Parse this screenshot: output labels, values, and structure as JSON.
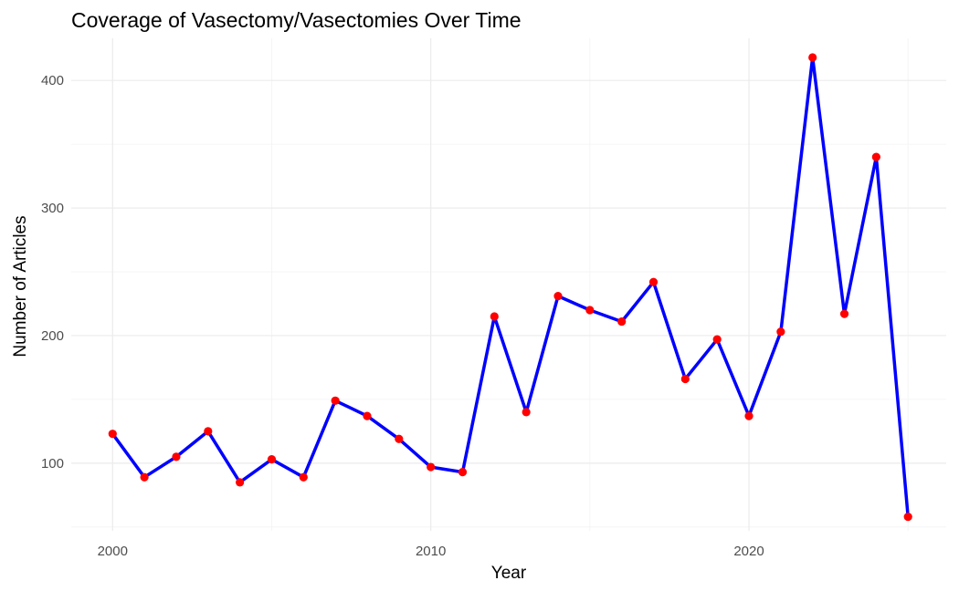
{
  "chart_data": {
    "type": "line",
    "title": "Coverage of Vasectomy/Vasectomies Over Time",
    "xlabel": "Year",
    "ylabel": "Number of Articles",
    "xlim": [
      1998.7,
      2026.2
    ],
    "ylim": [
      47,
      433
    ],
    "x_ticks": [
      2000,
      2010,
      2020
    ],
    "x_tick_labels": [
      "2000",
      "2010",
      "2020"
    ],
    "x_minor_ticks": [
      2005,
      2015,
      2025
    ],
    "y_ticks": [
      100,
      200,
      300,
      400
    ],
    "y_tick_labels": [
      "100",
      "200",
      "300",
      "400"
    ],
    "y_minor_ticks": [
      50,
      150,
      250,
      350
    ],
    "grid": true,
    "legend": "none",
    "line_color": "#0000ff",
    "point_color": "#ff0000",
    "x": [
      2000,
      2001,
      2002,
      2003,
      2004,
      2005,
      2006,
      2007,
      2008,
      2009,
      2010,
      2011,
      2012,
      2013,
      2014,
      2015,
      2016,
      2017,
      2018,
      2019,
      2020,
      2021,
      2022,
      2023,
      2024,
      2025
    ],
    "y": [
      123,
      89,
      105,
      125,
      85,
      103,
      89,
      149,
      137,
      119,
      97,
      93,
      215,
      140,
      231,
      220,
      211,
      242,
      166,
      197,
      137,
      203,
      418,
      217,
      340,
      58
    ]
  }
}
